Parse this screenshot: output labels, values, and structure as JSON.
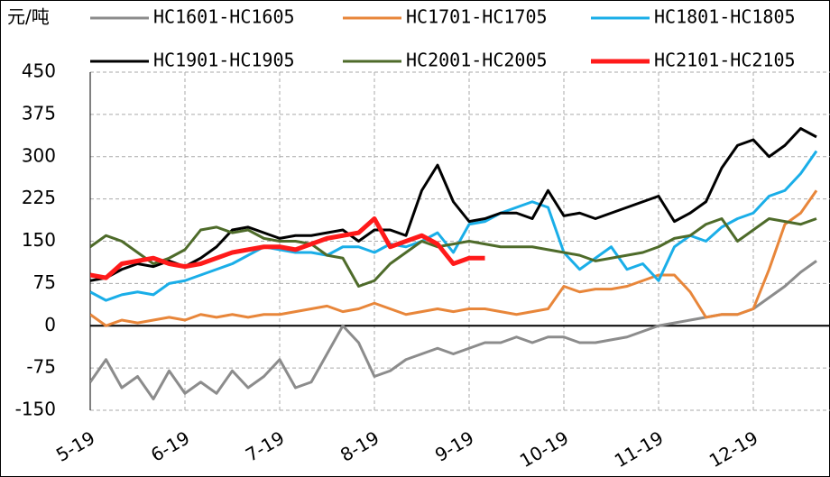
{
  "chart_data": {
    "type": "line",
    "unit": "元/吨",
    "categories": [
      "5-19",
      null,
      null,
      null,
      null,
      null,
      "6-19",
      null,
      null,
      null,
      null,
      null,
      "7-19",
      null,
      null,
      null,
      null,
      null,
      "8-19",
      null,
      null,
      null,
      null,
      null,
      "9-19",
      null,
      null,
      null,
      null,
      null,
      "10-19",
      null,
      null,
      null,
      null,
      null,
      "11-19",
      null,
      null,
      null,
      null,
      null,
      "12-19",
      null,
      null,
      null,
      null
    ],
    "ylim": [
      -150,
      450
    ],
    "yticks": [
      -150,
      -75,
      0,
      75,
      150,
      225,
      300,
      375,
      450
    ],
    "grid": true,
    "series": [
      {
        "name": "HC1601-HC1605",
        "color": "#8c8c8c",
        "values": [
          -100,
          -60,
          -110,
          -90,
          -130,
          -80,
          -120,
          -100,
          -120,
          -80,
          -110,
          -90,
          -60,
          -110,
          -100,
          -50,
          0,
          -30,
          -90,
          -80,
          -60,
          -50,
          -40,
          -50,
          -40,
          -30,
          -30,
          -20,
          -30,
          -20,
          -20,
          -30,
          -30,
          -25,
          -20,
          -10,
          0,
          5,
          10,
          15,
          20,
          20,
          30,
          50,
          70,
          95,
          115
        ]
      },
      {
        "name": "HC1701-HC1705",
        "color": "#e8863a",
        "values": [
          20,
          0,
          10,
          5,
          10,
          15,
          10,
          20,
          15,
          20,
          15,
          20,
          20,
          25,
          30,
          35,
          25,
          30,
          40,
          30,
          20,
          25,
          30,
          25,
          30,
          30,
          25,
          20,
          25,
          30,
          70,
          60,
          65,
          65,
          70,
          80,
          90,
          90,
          60,
          15,
          20,
          20,
          30,
          100,
          180,
          200,
          240
        ]
      },
      {
        "name": "HC1801-HC1805",
        "color": "#1aaee8",
        "values": [
          60,
          45,
          55,
          60,
          55,
          75,
          80,
          90,
          100,
          110,
          125,
          140,
          135,
          130,
          130,
          125,
          140,
          140,
          130,
          145,
          140,
          150,
          165,
          130,
          180,
          185,
          200,
          210,
          220,
          210,
          130,
          100,
          120,
          140,
          100,
          110,
          80,
          140,
          160,
          150,
          175,
          190,
          200,
          230,
          240,
          270,
          310
        ]
      },
      {
        "name": "HC1901-HC1905",
        "color": "#000000",
        "values": [
          80,
          85,
          100,
          110,
          105,
          115,
          105,
          120,
          140,
          170,
          175,
          165,
          155,
          160,
          160,
          165,
          170,
          150,
          170,
          170,
          160,
          240,
          285,
          220,
          185,
          190,
          200,
          200,
          190,
          240,
          195,
          200,
          190,
          200,
          210,
          220,
          230,
          185,
          200,
          220,
          280,
          320,
          330,
          300,
          320,
          350,
          335
        ]
      },
      {
        "name": "HC2001-HC2005",
        "color": "#4e6b2a",
        "values": [
          140,
          160,
          150,
          130,
          110,
          120,
          135,
          170,
          175,
          165,
          170,
          155,
          150,
          150,
          145,
          125,
          120,
          70,
          80,
          110,
          130,
          150,
          140,
          145,
          150,
          145,
          140,
          140,
          140,
          135,
          130,
          125,
          115,
          120,
          125,
          130,
          140,
          155,
          160,
          180,
          190,
          150,
          170,
          190,
          185,
          180,
          190
        ]
      },
      {
        "name": "HC2101-HC2105",
        "color": "#ff1a1a",
        "values": [
          90,
          85,
          110,
          115,
          120,
          110,
          105,
          110,
          120,
          130,
          135,
          140,
          140,
          135,
          145,
          155,
          160,
          165,
          190,
          140,
          150,
          160,
          145,
          110,
          120,
          120,
          null,
          null,
          null,
          null,
          null,
          null,
          null,
          null,
          null,
          null,
          null,
          null,
          null,
          null,
          null,
          null,
          null,
          null,
          null,
          null,
          null
        ]
      }
    ]
  }
}
